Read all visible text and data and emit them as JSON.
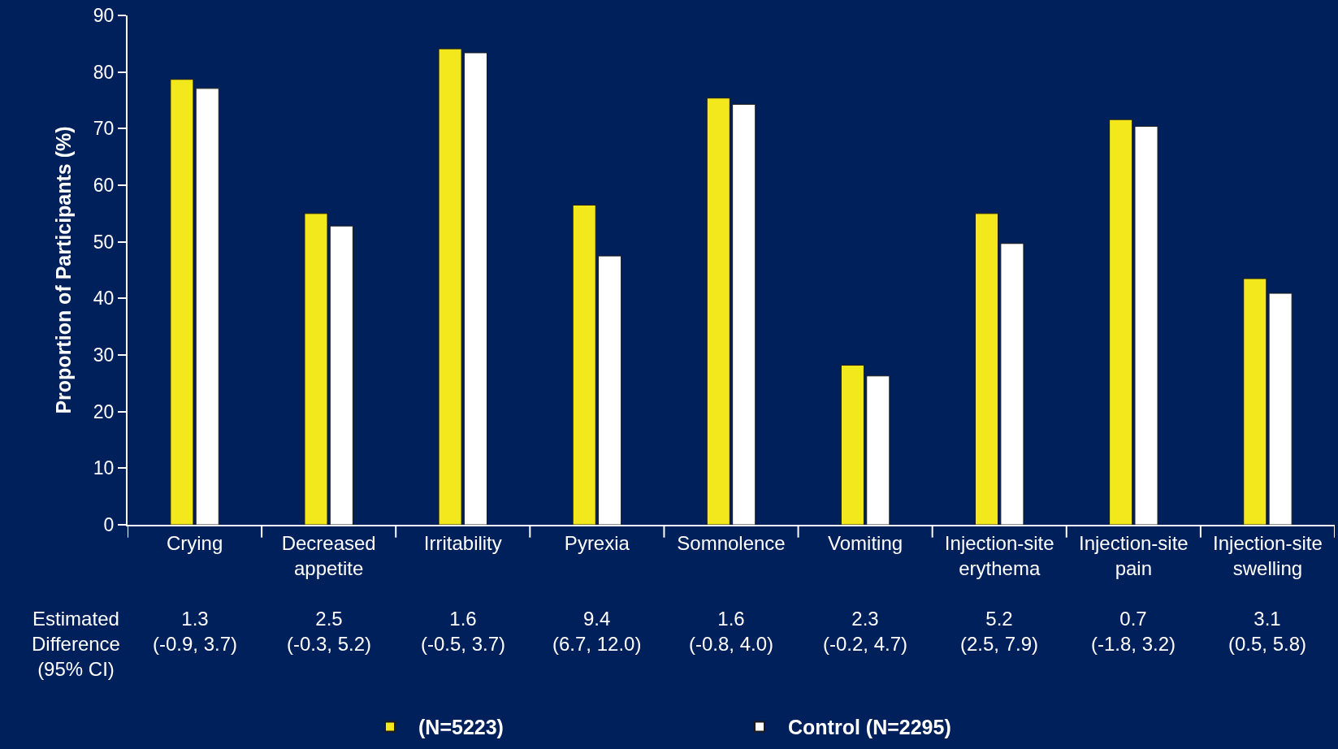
{
  "chart_data": {
    "type": "bar",
    "ylabel": "Proportion of Participants (%)",
    "categories": [
      "Crying",
      "Decreased appetite",
      "Irritability",
      "Pyrexia",
      "Somnolence",
      "Vomiting",
      "Injection-site erythema",
      "Injection-site pain",
      "Injection-site swelling"
    ],
    "series": [
      {
        "name": "(N=5223)",
        "color": "#f2e81c",
        "values": [
          78.7,
          55.0,
          84.1,
          56.5,
          75.4,
          28.2,
          55.0,
          71.6,
          43.5
        ]
      },
      {
        "name": "Control (N=2295)",
        "color": "#ffffff",
        "values": [
          77.1,
          52.8,
          83.4,
          47.5,
          74.3,
          26.3,
          49.7,
          70.4,
          40.9
        ]
      }
    ],
    "ylim": [
      0,
      90
    ],
    "yticks": [
      0,
      10,
      20,
      30,
      40,
      50,
      60,
      70,
      80,
      90
    ],
    "grid": false,
    "legend": "bottom",
    "annotations": [
      "Estimated Difference (95% CI)",
      "1.3 (-0.9, 3.7)",
      "2.5 (-0.3, 5.2)",
      "1.6 (-0.5, 3.7)",
      "9.4 (6.7, 12.0)",
      "1.6 (-0.8, 4.0)",
      "2.3 (-0.2, 4.7)",
      "5.2 (2.5, 7.9)",
      "0.7 (-1.8, 3.2)",
      "3.1 (0.5, 5.8)"
    ]
  }
}
